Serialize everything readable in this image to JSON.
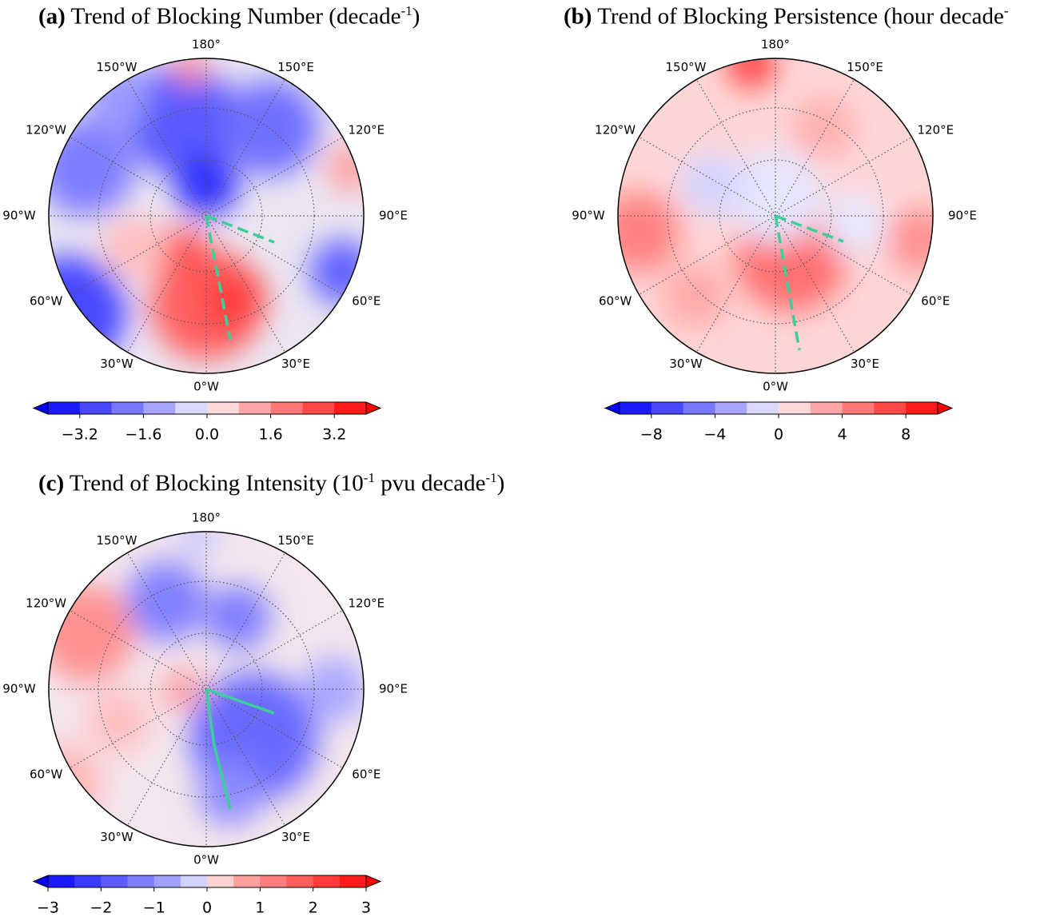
{
  "longitude_labels": [
    "180°",
    "150°E",
    "120°E",
    "90°E",
    "60°E",
    "30°E",
    "0°W",
    "30°W",
    "60°W",
    "90°W",
    "120°W",
    "150°W"
  ],
  "panels": [
    {
      "label": "(a)",
      "title_parts": [
        {
          "text": "Trend of Blocking Number (decade"
        },
        {
          "text": "-1",
          "sup": true
        },
        {
          "text": ")"
        }
      ],
      "colorbar": {
        "lim": [
          -4,
          4
        ],
        "colors": [
          "#1a1aff",
          "#4848ff",
          "#7777ff",
          "#a5a5ff",
          "#d9d9ff",
          "#ffd9d9",
          "#ffa5a5",
          "#ff7777",
          "#ff4848",
          "#ff1a1a"
        ],
        "extend_colors": [
          "#0000ff",
          "#ff0000"
        ],
        "ticks": [
          {
            "value": -3.2,
            "label": "−3.2"
          },
          {
            "value": -1.6,
            "label": "−1.6"
          },
          {
            "value": 0,
            "label": "0.0"
          },
          1.6,
          3.2
        ]
      }
    },
    {
      "label": "(b)",
      "title_parts": [
        {
          "text": "Trend of Blocking Persistence (hour decade"
        },
        {
          "text": "-",
          "sup": true
        }
      ],
      "colorbar": {
        "lim": [
          -10,
          10
        ],
        "colors": [
          "#1a1aff",
          "#4848ff",
          "#7777ff",
          "#a5a5ff",
          "#d9d9ff",
          "#ffd9d9",
          "#ffa5a5",
          "#ff7777",
          "#ff4848",
          "#ff1a1a"
        ],
        "extend_colors": [
          "#0000ff",
          "#ff0000"
        ],
        "ticks": [
          {
            "value": -8,
            "label": "−8"
          },
          {
            "value": -4,
            "label": "−4"
          },
          0,
          4,
          8
        ]
      }
    },
    {
      "label": "(c)",
      "title_parts": [
        {
          "text": "Trend of Blocking Intensity (10"
        },
        {
          "text": "-1",
          "sup": true
        },
        {
          "text": " pvu  decade"
        },
        {
          "text": "-1",
          "sup": true
        },
        {
          "text": ")"
        }
      ],
      "colorbar": {
        "lim": [
          -3,
          3
        ],
        "colors": [
          "#1a1aff",
          "#3b3bff",
          "#5c5cff",
          "#7d7dff",
          "#a0a0ff",
          "#d2d2ff",
          "#ffd2d2",
          "#ffa0a0",
          "#ff7d7d",
          "#ff5c5c",
          "#ff3b3b",
          "#ff1a1a"
        ],
        "extend_colors": [
          "#0000ff",
          "#ff0000"
        ],
        "ticks": [
          {
            "value": -3,
            "label": "−3"
          },
          {
            "value": -2,
            "label": "−2"
          },
          {
            "value": -1,
            "label": "−1"
          },
          0,
          1,
          2,
          3
        ]
      }
    }
  ]
}
